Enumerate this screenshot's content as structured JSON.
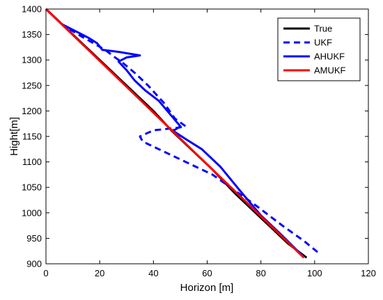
{
  "chart_data": {
    "type": "line",
    "title": "",
    "xlabel": "Horizon [m]",
    "ylabel": "Hight[m]",
    "xlim": [
      0,
      120
    ],
    "ylim": [
      900,
      1400
    ],
    "xticks": [
      0,
      20,
      40,
      60,
      80,
      100,
      120
    ],
    "yticks": [
      900,
      950,
      1000,
      1050,
      1100,
      1150,
      1200,
      1250,
      1300,
      1350,
      1400
    ],
    "grid": false,
    "legend_position": "top-right",
    "series": [
      {
        "name": "True",
        "color": "#000000",
        "dash": "solid",
        "x": [
          0,
          10,
          20,
          30,
          40,
          47,
          55,
          62,
          70,
          80,
          90,
          97
        ],
        "y": [
          1400,
          1350,
          1300,
          1250,
          1200,
          1160,
          1120,
          1085,
          1040,
          990,
          940,
          912
        ]
      },
      {
        "name": "UKF",
        "color": "#0000ff",
        "dash": "dash",
        "x": [
          0,
          6,
          12,
          17,
          22,
          26,
          28,
          33,
          38,
          44,
          48,
          52,
          49,
          40,
          35,
          36,
          42,
          52,
          62,
          70,
          78,
          88,
          96,
          102
        ],
        "y": [
          1400,
          1370,
          1350,
          1335,
          1320,
          1304,
          1297,
          1275,
          1250,
          1215,
          1185,
          1170,
          1167,
          1162,
          1150,
          1140,
          1125,
          1100,
          1075,
          1045,
          1015,
          975,
          945,
          919
        ]
      },
      {
        "name": "AHUKF",
        "color": "#0000ff",
        "dash": "solid",
        "x": [
          0,
          6,
          12,
          16,
          19,
          21,
          27,
          35,
          30,
          27,
          30,
          33,
          37,
          42,
          46,
          50,
          48,
          47,
          52,
          58,
          65,
          72,
          80,
          88,
          96
        ],
        "y": [
          1400,
          1370,
          1354,
          1343,
          1333,
          1320,
          1316,
          1309,
          1305,
          1297,
          1280,
          1260,
          1240,
          1220,
          1195,
          1170,
          1163,
          1162,
          1145,
          1125,
          1090,
          1045,
          995,
          955,
          913
        ]
      },
      {
        "name": "AMUKF",
        "color": "#ff0000",
        "dash": "solid",
        "x": [
          0,
          96
        ],
        "y": [
          1400,
          912
        ]
      }
    ]
  }
}
